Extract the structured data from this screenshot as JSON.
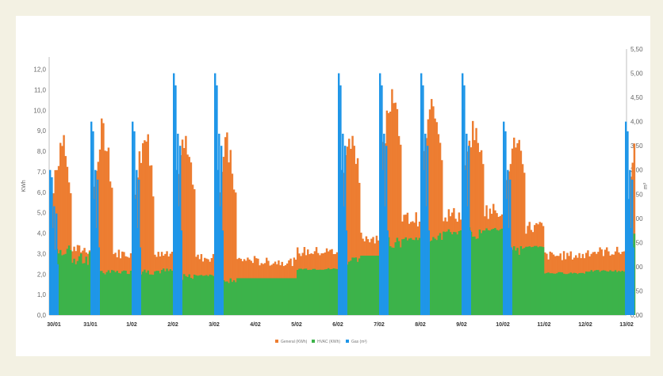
{
  "chart_data": {
    "type": "bar",
    "ylabel_left": "KWh",
    "ylabel_right": "m³",
    "ylim_left": [
      0,
      12.6
    ],
    "ylim_right": [
      0,
      5.5
    ],
    "yticks_left": [
      "0,0",
      "1,0",
      "2,0",
      "3,0",
      "4,0",
      "5,0",
      "6,0",
      "7,0",
      "8,0",
      "9,0",
      "10,0",
      "11,0",
      "12,0"
    ],
    "yticks_right": [
      "0,00",
      "0,50",
      "1,00",
      "1,50",
      "2,00",
      "2,50",
      "3,00",
      "3,50",
      "4,00",
      "4,50",
      "5,00",
      "5,50"
    ],
    "x_categories": [
      "30/01",
      "31/01",
      "1/02",
      "2/02",
      "3/02",
      "4/02",
      "5/02",
      "6/02",
      "7/02",
      "8/02",
      "9/02",
      "10/02",
      "11/02",
      "12/02",
      "13/02"
    ],
    "legend": [
      "General (KWh)",
      "HVAC (KWh)",
      "Gas (m³)"
    ],
    "colors": {
      "general": "#ed7d31",
      "hvac": "#3cb34a",
      "gas": "#1f96e8",
      "axis": "#bfbfbf"
    },
    "series": [
      {
        "name": "General (KWh)",
        "axis": "left",
        "values": [
          9.0,
          9.8,
          9.5,
          9.3,
          9.0,
          2.8,
          2.9,
          9.5,
          11.8,
          11.0,
          9.6,
          9.2,
          3.1,
          3.2,
          9.5
        ],
        "baseline": [
          3.2,
          3.0,
          2.9,
          2.8,
          2.7,
          2.6,
          3.1,
          3.8,
          4.7,
          4.9,
          5.1,
          4.3,
          2.9,
          3.1,
          4.8
        ]
      },
      {
        "name": "HVAC (KWh)",
        "axis": "left",
        "values": [
          3.4,
          2.2,
          2.3,
          2.0,
          1.8,
          1.8,
          2.3,
          2.9,
          3.8,
          4.2,
          4.3,
          3.4,
          2.1,
          2.2,
          4.0
        ],
        "baseline": [
          2.4,
          2.0,
          2.0,
          1.9,
          1.8,
          1.8,
          2.2,
          2.9,
          3.6,
          3.9,
          4.1,
          3.3,
          2.0,
          2.1,
          3.6
        ]
      },
      {
        "name": "Gas (m³)",
        "axis": "right",
        "values": [
          3.0,
          4.0,
          4.0,
          5.0,
          5.0,
          0.0,
          0.0,
          5.0,
          5.0,
          5.0,
          5.0,
          4.0,
          0.0,
          0.0,
          4.0
        ]
      }
    ]
  }
}
